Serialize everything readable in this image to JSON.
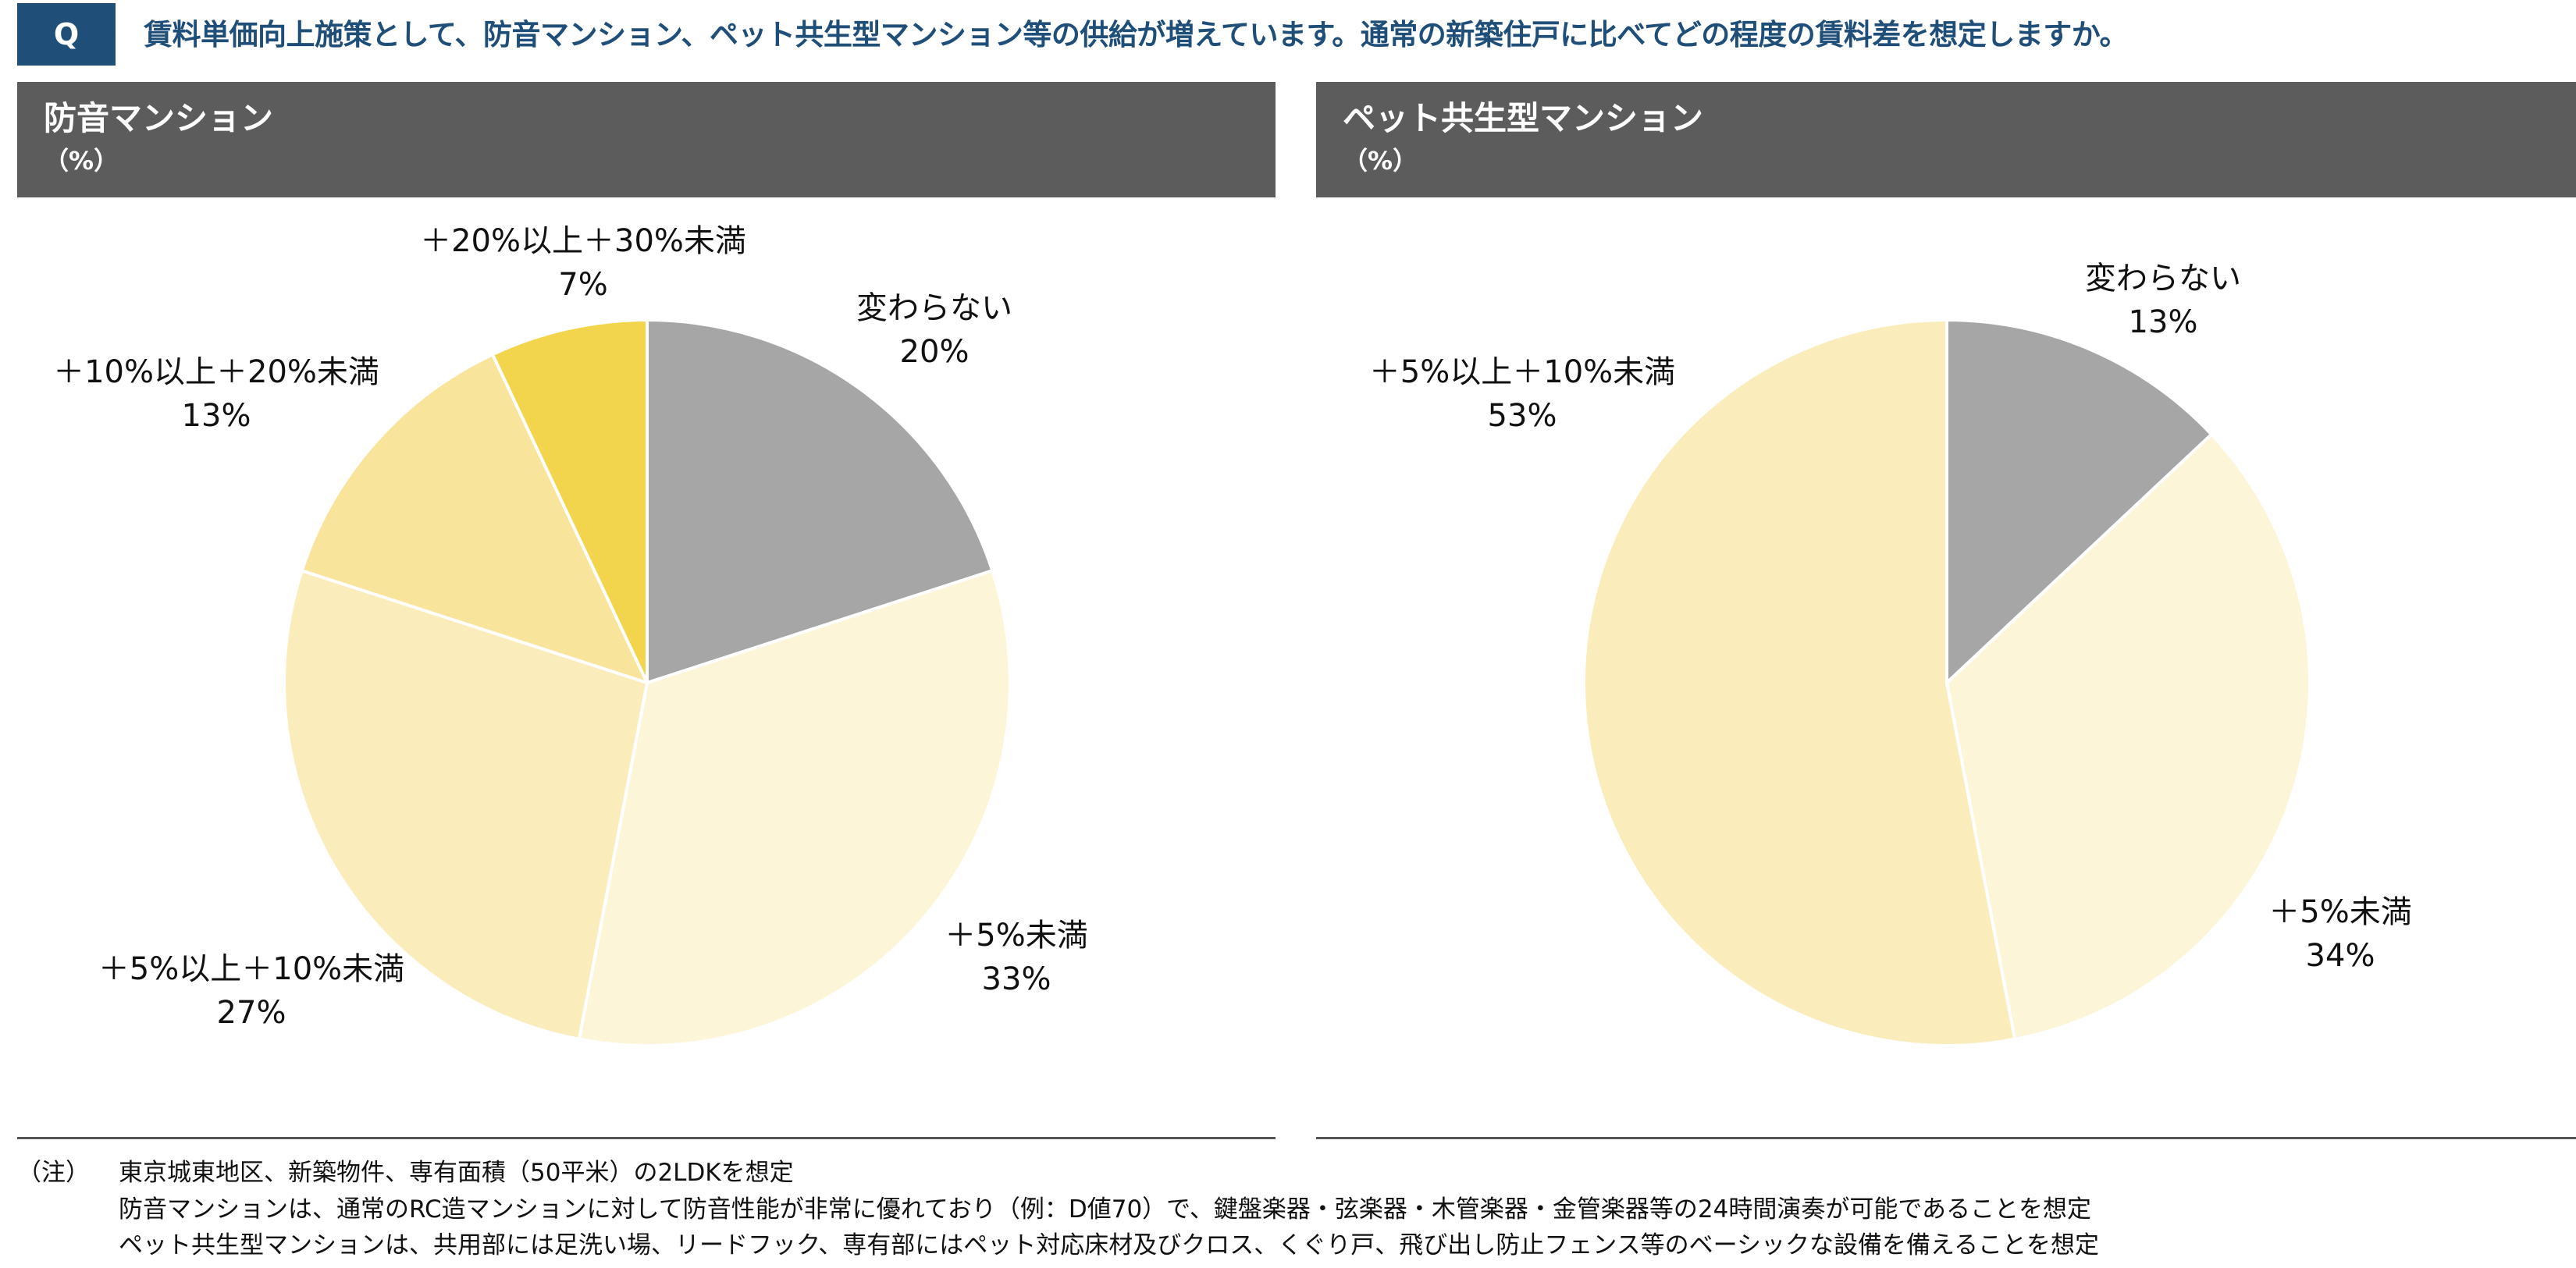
{
  "header": {
    "q_label": "Q",
    "question": "賃料単価向上施策として、防音マンション、ペット共生型マンション等の供給が増えています。通常の新築住戸に比べてどの程度の賃料差を想定しますか。"
  },
  "chart_data": [
    {
      "type": "pie",
      "title": "防音マンション",
      "unit": "（%）",
      "start_angle_deg": 0,
      "direction": "clockwise",
      "slices": [
        {
          "label": "変わらない",
          "value": 20,
          "value_label": "20%",
          "color": "#a6a6a6"
        },
        {
          "label": "＋5%未満",
          "value": 33,
          "value_label": "33%",
          "color": "#fdf5d8"
        },
        {
          "label": "＋5%以上＋10%未満",
          "value": 27,
          "value_label": "27%",
          "color": "#fbedbb"
        },
        {
          "label": "＋10%以上＋20%未満",
          "value": 13,
          "value_label": "13%",
          "color": "#f9e49c"
        },
        {
          "label": "＋20%以上＋30%未満",
          "value": 7,
          "value_label": "7%",
          "color": "#f2d54d"
        }
      ]
    },
    {
      "type": "pie",
      "title": "ペット共生型マンション",
      "unit": "（%）",
      "start_angle_deg": 0,
      "direction": "clockwise",
      "slices": [
        {
          "label": "変わらない",
          "value": 13,
          "value_label": "13%",
          "color": "#a6a6a6"
        },
        {
          "label": "＋5%未満",
          "value": 34,
          "value_label": "34%",
          "color": "#fdf5d8"
        },
        {
          "label": "＋5%以上＋10%未満",
          "value": 53,
          "value_label": "53%",
          "color": "#fbedbb"
        }
      ]
    }
  ],
  "notes": {
    "label": "（注）",
    "lines": [
      "東京城東地区、新築物件、専有面積（50平米）の2LDKを想定",
      "防音マンションは、通常のRC造マンションに対して防音性能が非常に優れており（例：D値70）で、鍵盤楽器・弦楽器・木管楽器・金管楽器等の24時間演奏が可能であることを想定",
      "ペット共生型マンションは、共用部には足洗い場、リードフック、専有部にはペット対応床材及びクロス、くぐり戸、飛び出し防止フェンス等のベーシックな設備を備えることを想定"
    ]
  }
}
